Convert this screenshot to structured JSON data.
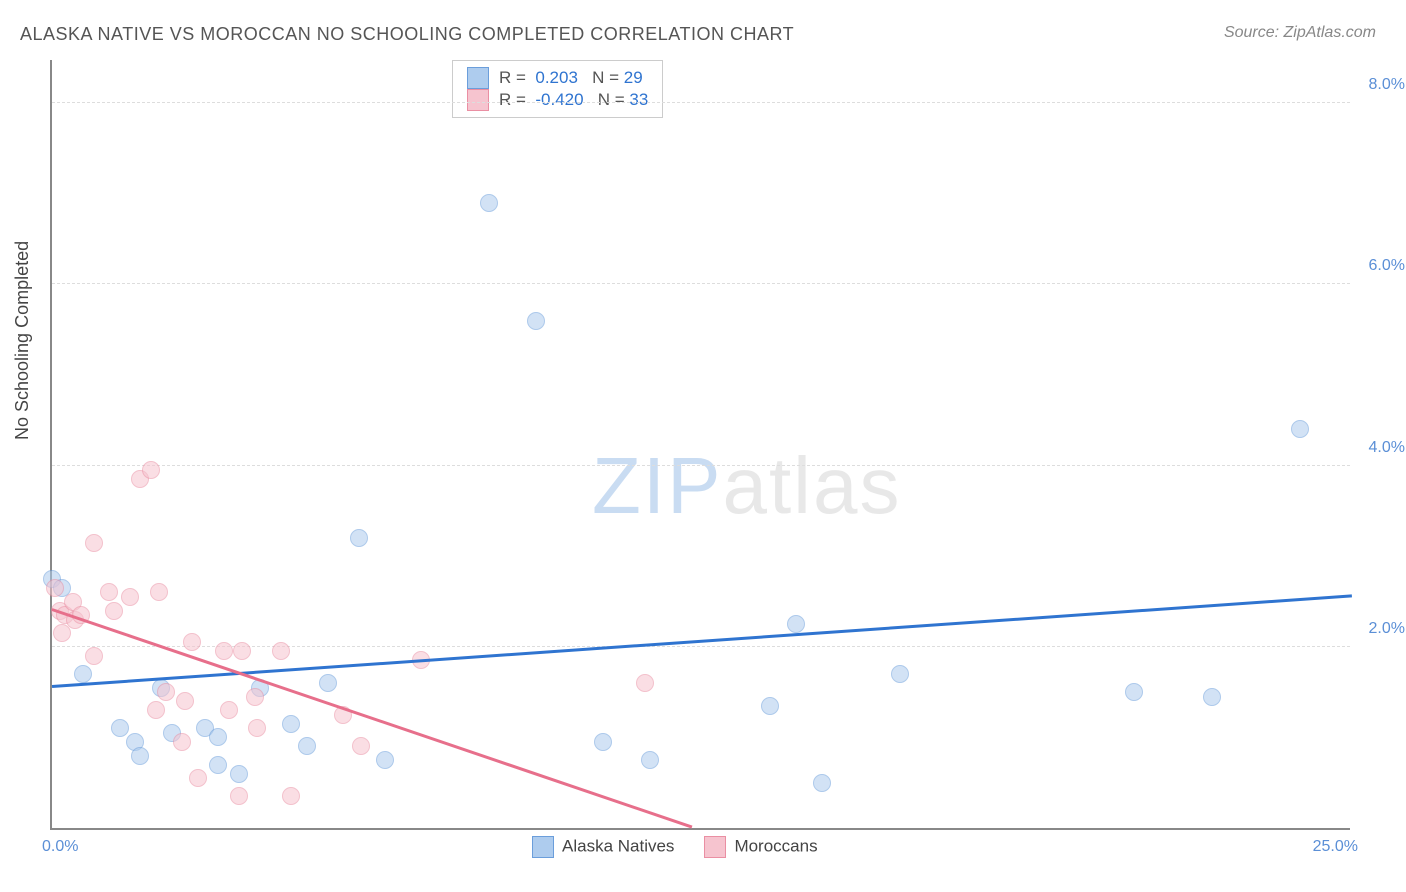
{
  "title": "ALASKA NATIVE VS MOROCCAN NO SCHOOLING COMPLETED CORRELATION CHART",
  "source": "Source: ZipAtlas.com",
  "ylabel": "No Schooling Completed",
  "watermark": {
    "part1": "ZIP",
    "part2": "atlas"
  },
  "chart": {
    "type": "scatter",
    "xlim": [
      0,
      25
    ],
    "ylim": [
      0,
      8.5
    ],
    "x_ticks": [
      {
        "value": 0,
        "label": "0.0%"
      },
      {
        "value": 25,
        "label": "25.0%"
      }
    ],
    "y_ticks": [
      {
        "value": 2,
        "label": "2.0%"
      },
      {
        "value": 4,
        "label": "4.0%"
      },
      {
        "value": 6,
        "label": "6.0%"
      },
      {
        "value": 8,
        "label": "8.0%"
      }
    ],
    "background_color": "#ffffff",
    "grid_color": "#dddddd",
    "axis_color": "#888888",
    "point_radius": 9,
    "point_opacity": 0.55,
    "series": [
      {
        "name": "Alaska Natives",
        "fill": "#aeccee",
        "stroke": "#6b9edb",
        "trend_color": "#2f74d0",
        "trend": {
          "x1": 0,
          "y1": 1.55,
          "x2": 25,
          "y2": 2.55
        },
        "R_label": "R =",
        "R": "0.203",
        "N_label": "N =",
        "N": "29",
        "points": [
          [
            0.0,
            2.75
          ],
          [
            0.2,
            2.65
          ],
          [
            0.6,
            1.7
          ],
          [
            1.3,
            1.1
          ],
          [
            1.6,
            0.95
          ],
          [
            1.7,
            0.8
          ],
          [
            2.1,
            1.55
          ],
          [
            2.3,
            1.05
          ],
          [
            2.95,
            1.1
          ],
          [
            3.2,
            1.0
          ],
          [
            3.2,
            0.7
          ],
          [
            3.6,
            0.6
          ],
          [
            4.0,
            1.55
          ],
          [
            4.6,
            1.15
          ],
          [
            4.9,
            0.9
          ],
          [
            5.3,
            1.6
          ],
          [
            5.9,
            3.2
          ],
          [
            6.4,
            0.75
          ],
          [
            8.4,
            6.9
          ],
          [
            9.3,
            5.6
          ],
          [
            10.6,
            0.95
          ],
          [
            11.5,
            0.75
          ],
          [
            13.8,
            1.35
          ],
          [
            14.3,
            2.25
          ],
          [
            14.8,
            0.5
          ],
          [
            16.3,
            1.7
          ],
          [
            20.8,
            1.5
          ],
          [
            22.3,
            1.45
          ],
          [
            24.0,
            4.4
          ]
        ]
      },
      {
        "name": "Moroccans",
        "fill": "#f6c4cf",
        "stroke": "#ea8fa3",
        "trend_color": "#e76f8b",
        "trend": {
          "x1": 0,
          "y1": 2.4,
          "x2": 12.3,
          "y2": 0
        },
        "R_label": "R =",
        "R": "-0.420",
        "N_label": "N =",
        "N": "33",
        "points": [
          [
            0.05,
            2.65
          ],
          [
            0.15,
            2.4
          ],
          [
            0.2,
            2.15
          ],
          [
            0.25,
            2.35
          ],
          [
            0.4,
            2.5
          ],
          [
            0.45,
            2.3
          ],
          [
            0.55,
            2.35
          ],
          [
            0.8,
            1.9
          ],
          [
            0.8,
            3.15
          ],
          [
            1.1,
            2.6
          ],
          [
            1.2,
            2.4
          ],
          [
            1.5,
            2.55
          ],
          [
            1.7,
            3.85
          ],
          [
            1.9,
            3.95
          ],
          [
            2.0,
            1.3
          ],
          [
            2.05,
            2.6
          ],
          [
            2.2,
            1.5
          ],
          [
            2.5,
            0.95
          ],
          [
            2.55,
            1.4
          ],
          [
            2.7,
            2.05
          ],
          [
            2.8,
            0.55
          ],
          [
            3.3,
            1.95
          ],
          [
            3.4,
            1.3
          ],
          [
            3.6,
            0.35
          ],
          [
            3.65,
            1.95
          ],
          [
            3.9,
            1.45
          ],
          [
            3.95,
            1.1
          ],
          [
            4.4,
            1.95
          ],
          [
            4.6,
            0.35
          ],
          [
            5.6,
            1.25
          ],
          [
            5.95,
            0.9
          ],
          [
            7.1,
            1.85
          ],
          [
            11.4,
            1.6
          ]
        ]
      }
    ]
  },
  "legend_top": {
    "rows": [
      {
        "swatch_fill": "#aeccee",
        "swatch_stroke": "#6b9edb"
      },
      {
        "swatch_fill": "#f6c4cf",
        "swatch_stroke": "#ea8fa3"
      }
    ],
    "value_color": "#2f74d0",
    "label_color": "#555555"
  },
  "legend_bottom": {
    "items": [
      {
        "label": "Alaska Natives",
        "fill": "#aeccee",
        "stroke": "#6b9edb"
      },
      {
        "label": "Moroccans",
        "fill": "#f6c4cf",
        "stroke": "#ea8fa3"
      }
    ]
  }
}
